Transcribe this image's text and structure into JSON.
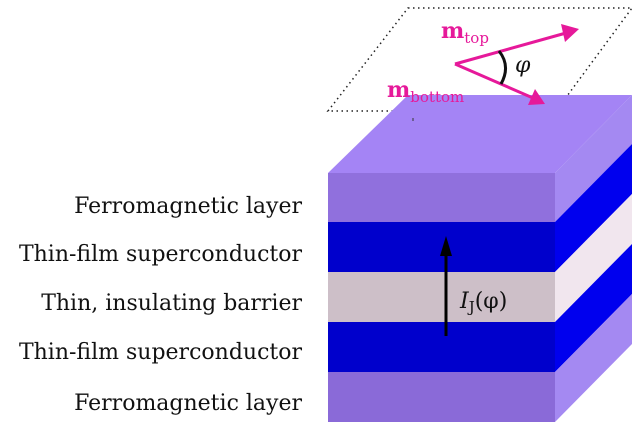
{
  "layers": [
    {
      "label": "Ferromagnetic layer",
      "front_color": "#9070dd",
      "side_color": "#a489f2"
    },
    {
      "label": "Thin-film superconductor",
      "front_color": "#0000cc",
      "side_color": "#0000ee"
    },
    {
      "label": "Thin, insulating barrier",
      "front_color": "#cdbfc8",
      "side_color": "#f1e6ee"
    },
    {
      "label": "Thin-film superconductor",
      "front_color": "#0000cc",
      "side_color": "#0000ee"
    },
    {
      "label": "Ferromagnetic layer",
      "front_color": "#8a6ad8",
      "side_color": "#a489f2"
    }
  ],
  "top_face_color": "#a484f5",
  "current": {
    "symbol": "I",
    "subscript": "J",
    "argument": "(φ)"
  },
  "magnetization": {
    "color": "#e6199a",
    "top": {
      "symbol": "m",
      "subscript": "top"
    },
    "bottom": {
      "symbol": "m",
      "subscript": "bottom"
    },
    "angle": "φ"
  }
}
